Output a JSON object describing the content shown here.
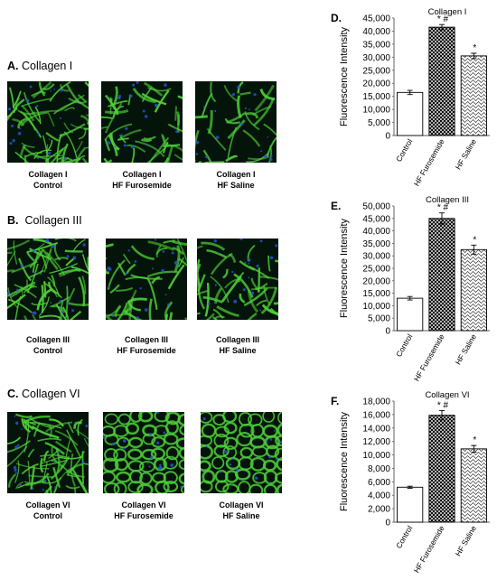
{
  "left_panels": [
    {
      "letter": "A.",
      "name": "Collagen I",
      "captions": [
        [
          "Collagen I",
          "Control"
        ],
        [
          "Collagen I",
          "HF Furosemide"
        ],
        [
          "Collagen I",
          "HF Saline"
        ]
      ]
    },
    {
      "letter": "B.",
      "name": "Collagen III",
      "captions": [
        [
          "Collagen III",
          "Control"
        ],
        [
          "Collagen III",
          "HF Furosemide"
        ],
        [
          "Collagen III",
          "HF Saline"
        ]
      ]
    },
    {
      "letter": "C.",
      "name": "Collagen VI",
      "captions": [
        [
          "Collagen VI",
          "Control"
        ],
        [
          "Collagen VI",
          "HF Furosemide"
        ],
        [
          "Collagen VI",
          "HF Saline"
        ]
      ]
    }
  ],
  "chart_data": [
    {
      "type": "bar",
      "panel_label": "D.",
      "title": "Collagen I",
      "ylabel": "Fluorescence Intensity",
      "categories": [
        "Control",
        "HF Furosemide",
        "HF Saline"
      ],
      "values": [
        16500,
        41500,
        30500
      ],
      "errors": [
        800,
        1000,
        1000
      ],
      "significance": [
        "",
        "* #",
        "*"
      ],
      "ylim": [
        0,
        45000
      ],
      "yticks": [
        "0",
        "5,000",
        "10,000",
        "15,000",
        "20,000",
        "25,000",
        "30,000",
        "35,000",
        "40,000",
        "45,000"
      ],
      "patterns": [
        "none",
        "crosshatch",
        "wave"
      ]
    },
    {
      "type": "bar",
      "panel_label": "E.",
      "title": "Collagen III",
      "ylabel": "Fluorescence Intensity",
      "categories": [
        "Control",
        "HF Furosemide",
        "HF Saline"
      ],
      "values": [
        13000,
        45000,
        32500
      ],
      "errors": [
        700,
        2200,
        1800
      ],
      "significance": [
        "",
        "* #",
        "*"
      ],
      "ylim": [
        0,
        50000
      ],
      "yticks": [
        "0",
        "5,000",
        "10,000",
        "15,000",
        "20,000",
        "25,000",
        "30,000",
        "35,000",
        "40,000",
        "45,000",
        "50,000"
      ],
      "patterns": [
        "none",
        "crosshatch",
        "wave"
      ]
    },
    {
      "type": "bar",
      "panel_label": "F.",
      "title": "Collagen VI",
      "ylabel": "Fluorescence Intensity",
      "categories": [
        "Control",
        "HF Furosemide",
        "HF Saline"
      ],
      "values": [
        5200,
        15900,
        10900
      ],
      "errors": [
        150,
        700,
        500
      ],
      "significance": [
        "",
        "* #",
        "*"
      ],
      "ylim": [
        0,
        18000
      ],
      "yticks": [
        "0",
        "2,000",
        "4,000",
        "6,000",
        "8,000",
        "10,000",
        "12,000",
        "14,000",
        "16,000",
        "18,000"
      ],
      "patterns": [
        "none",
        "crosshatch",
        "wave"
      ]
    }
  ],
  "colors": {
    "fiber": "#4fd03a",
    "nuclei": "#2a55d6",
    "background": "#04140a"
  }
}
